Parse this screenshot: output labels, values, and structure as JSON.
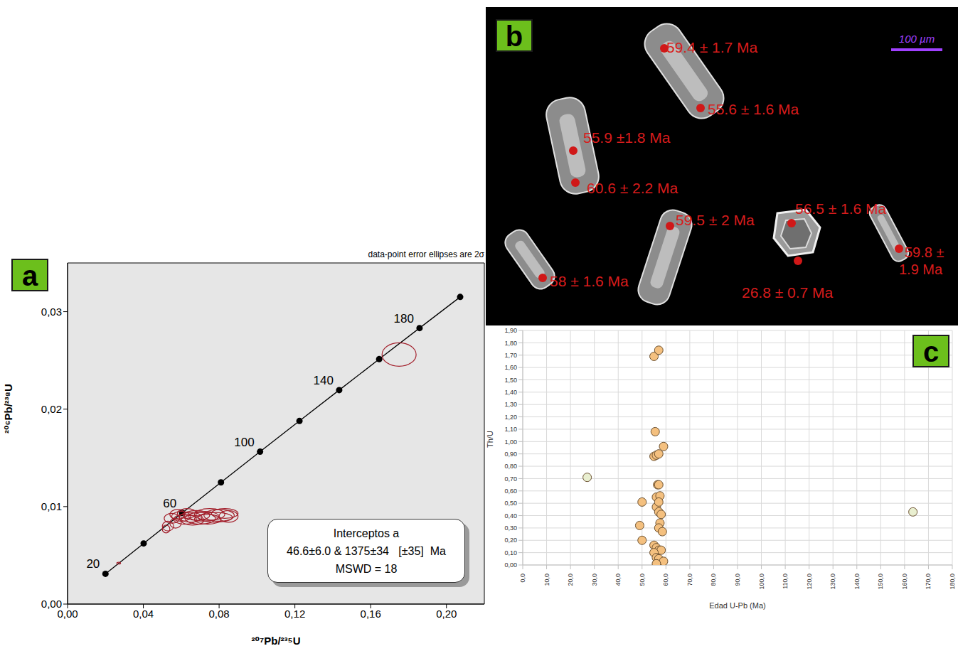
{
  "chart_data": [
    {
      "panel_label": "a",
      "type": "scatter",
      "subtitle": "data-point error ellipses are 2σ",
      "x_label": "²⁰⁷Pb/²³⁵U",
      "y_label": "²⁰⁶Pb/²³⁸U",
      "xlim": [
        0,
        0.22
      ],
      "ylim": [
        0,
        0.035
      ],
      "xticks": [
        {
          "value": 0,
          "label": "0,00"
        },
        {
          "value": 0.04,
          "label": "0,04"
        },
        {
          "value": 0.08,
          "label": "0,08"
        },
        {
          "value": 0.12,
          "label": "0,12"
        },
        {
          "value": 0.16,
          "label": "0,16"
        },
        {
          "value": 0.2,
          "label": "0,20"
        }
      ],
      "yticks": [
        {
          "value": 0,
          "label": "0,00"
        },
        {
          "value": 0.01,
          "label": "0,01"
        },
        {
          "value": 0.02,
          "label": "0,02"
        },
        {
          "value": 0.03,
          "label": "0,03"
        }
      ],
      "grid": false,
      "annotation": [
        "Interceptos a",
        "46.6±6.0 & 1375±34   [±35]  Ma",
        "MSWD = 18"
      ],
      "series": [
        {
          "type": "line",
          "marker": "circle",
          "color": "#000000",
          "ages": [
            20,
            40,
            60,
            80,
            100,
            120,
            140,
            160,
            180,
            200
          ],
          "labeled_ages": [
            20,
            60,
            100,
            140,
            180
          ],
          "x": [
            0.02001,
            0.04017,
            0.0605,
            0.08098,
            0.10161,
            0.12241,
            0.14338,
            0.1645,
            0.1858,
            0.20724
          ],
          "y": [
            0.003107,
            0.006224,
            0.009351,
            0.012488,
            0.015634,
            0.01879,
            0.021957,
            0.025133,
            0.028319,
            0.03151
          ]
        },
        {
          "type": "ellipse",
          "color": "#a3202c",
          "x": [
            0.027,
            0.175,
            0.055,
            0.06,
            0.062,
            0.065,
            0.068,
            0.07,
            0.072,
            0.075,
            0.078,
            0.08,
            0.083,
            0.058,
            0.063,
            0.053,
            0.052,
            0.057,
            0.066,
            0.074,
            0.085
          ],
          "y": [
            0.0042,
            0.0256,
            0.0088,
            0.009,
            0.0087,
            0.0089,
            0.0091,
            0.0088,
            0.009,
            0.0092,
            0.0089,
            0.0091,
            0.0093,
            0.0092,
            0.0093,
            0.008,
            0.0077,
            0.0083,
            0.0086,
            0.0087,
            0.009
          ],
          "x_err": [
            0.001,
            0.009,
            0.004,
            0.005,
            0.006,
            0.006,
            0.007,
            0.008,
            0.008,
            0.008,
            0.009,
            0.008,
            0.007,
            0.004,
            0.005,
            0.003,
            0.002,
            0.003,
            0.006,
            0.007,
            0.005
          ],
          "y_err": [
            0.0001,
            0.0012,
            0.0005,
            0.0005,
            0.0005,
            0.0005,
            0.0005,
            0.0006,
            0.0005,
            0.0006,
            0.0005,
            0.0006,
            0.0005,
            0.0005,
            0.0005,
            0.0005,
            0.0004,
            0.0005,
            0.0005,
            0.0005,
            0.0006
          ]
        }
      ]
    },
    {
      "panel_label": "c",
      "type": "scatter",
      "x_label": "Edad U-Pb (Ma)",
      "y_label": "Th/U",
      "xlim": [
        0,
        180
      ],
      "ylim": [
        0,
        1.9
      ],
      "xticks": [
        {
          "value": 0,
          "label": "0,0"
        },
        {
          "value": 10,
          "label": "10,0"
        },
        {
          "value": 20,
          "label": "20,0"
        },
        {
          "value": 30,
          "label": "30,0"
        },
        {
          "value": 40,
          "label": "40,0"
        },
        {
          "value": 50,
          "label": "50,0"
        },
        {
          "value": 60,
          "label": "60,0"
        },
        {
          "value": 70,
          "label": "70,0"
        },
        {
          "value": 80,
          "label": "80,0"
        },
        {
          "value": 90,
          "label": "90,0"
        },
        {
          "value": 100,
          "label": "100,0"
        },
        {
          "value": 110,
          "label": "110,0"
        },
        {
          "value": 120,
          "label": "120,0"
        },
        {
          "value": 130,
          "label": "130,0"
        },
        {
          "value": 140,
          "label": "140,0"
        },
        {
          "value": 150,
          "label": "150,0"
        },
        {
          "value": 160,
          "label": "160,0"
        },
        {
          "value": 170,
          "label": "170,0"
        },
        {
          "value": 180,
          "label": "180,0"
        }
      ],
      "yticks": [
        {
          "value": 0,
          "label": "0,00"
        },
        {
          "value": 0.1,
          "label": "0,10"
        },
        {
          "value": 0.2,
          "label": "0,20"
        },
        {
          "value": 0.3,
          "label": "0,30"
        },
        {
          "value": 0.4,
          "label": "0,40"
        },
        {
          "value": 0.5,
          "label": "0,50"
        },
        {
          "value": 0.6,
          "label": "0,60"
        },
        {
          "value": 0.7,
          "label": "0,70"
        },
        {
          "value": 0.8,
          "label": "0,80"
        },
        {
          "value": 0.9,
          "label": "0,90"
        },
        {
          "value": 1.0,
          "label": "1,00"
        },
        {
          "value": 1.1,
          "label": "1,10"
        },
        {
          "value": 1.2,
          "label": "1,20"
        },
        {
          "value": 1.3,
          "label": "1,30"
        },
        {
          "value": 1.4,
          "label": "1,40"
        },
        {
          "value": 1.5,
          "label": "1,50"
        },
        {
          "value": 1.6,
          "label": "1,60"
        },
        {
          "value": 1.7,
          "label": "1,70"
        },
        {
          "value": 1.8,
          "label": "1,80"
        },
        {
          "value": 1.9,
          "label": "1,90"
        }
      ],
      "grid": true,
      "marker": "circle",
      "x": [
        55,
        57,
        55.5,
        55,
        56,
        57,
        59,
        56.5,
        57,
        56,
        57.5,
        56,
        57,
        50,
        57,
        58,
        57.5,
        57,
        58.5,
        49,
        50,
        55,
        56,
        57,
        58,
        55,
        56,
        57,
        59,
        56,
        27,
        163.5
      ],
      "y": [
        1.69,
        1.74,
        1.08,
        0.88,
        0.89,
        0.9,
        0.96,
        0.65,
        0.65,
        0.55,
        0.56,
        0.47,
        0.51,
        0.51,
        0.43,
        0.41,
        0.34,
        0.3,
        0.27,
        0.32,
        0.2,
        0.16,
        0.14,
        0.12,
        0.12,
        0.1,
        0.06,
        0.05,
        0.03,
        0.01,
        0.71,
        0.43
      ],
      "colors": [
        "#f4c07f",
        "#f4c07f",
        "#f4c07f",
        "#f4c07f",
        "#f4c07f",
        "#f4c07f",
        "#f4c07f",
        "#f4c07f",
        "#f4c07f",
        "#f4c07f",
        "#f4c07f",
        "#f4c07f",
        "#f4c07f",
        "#f4c07f",
        "#f4c07f",
        "#f4c07f",
        "#f4c07f",
        "#f4c07f",
        "#f4c07f",
        "#f4c07f",
        "#f4c07f",
        "#f4c07f",
        "#f4c07f",
        "#f4c07f",
        "#f4c07f",
        "#f4c07f",
        "#f4c07f",
        "#f4c07f",
        "#f4c07f",
        "#f4c07f",
        "#e9efd0",
        "#e9efd0"
      ]
    }
  ],
  "image_panel": {
    "panel_label": "b",
    "scale_bar": "100 µm",
    "spot_ages": [
      "59.4 ± 1.7 Ma",
      "55.6 ± 1.6 Ma",
      "55.9 ±1.8 Ma",
      "60.6 ± 2.2 Ma",
      "59.5 ± 2 Ma",
      "56.5 ± 1.6 Ma",
      "26.8 ± 0.7 Ma",
      "59.8 ± 1.9 Ma",
      "58 ± 1.6 Ma"
    ]
  }
}
